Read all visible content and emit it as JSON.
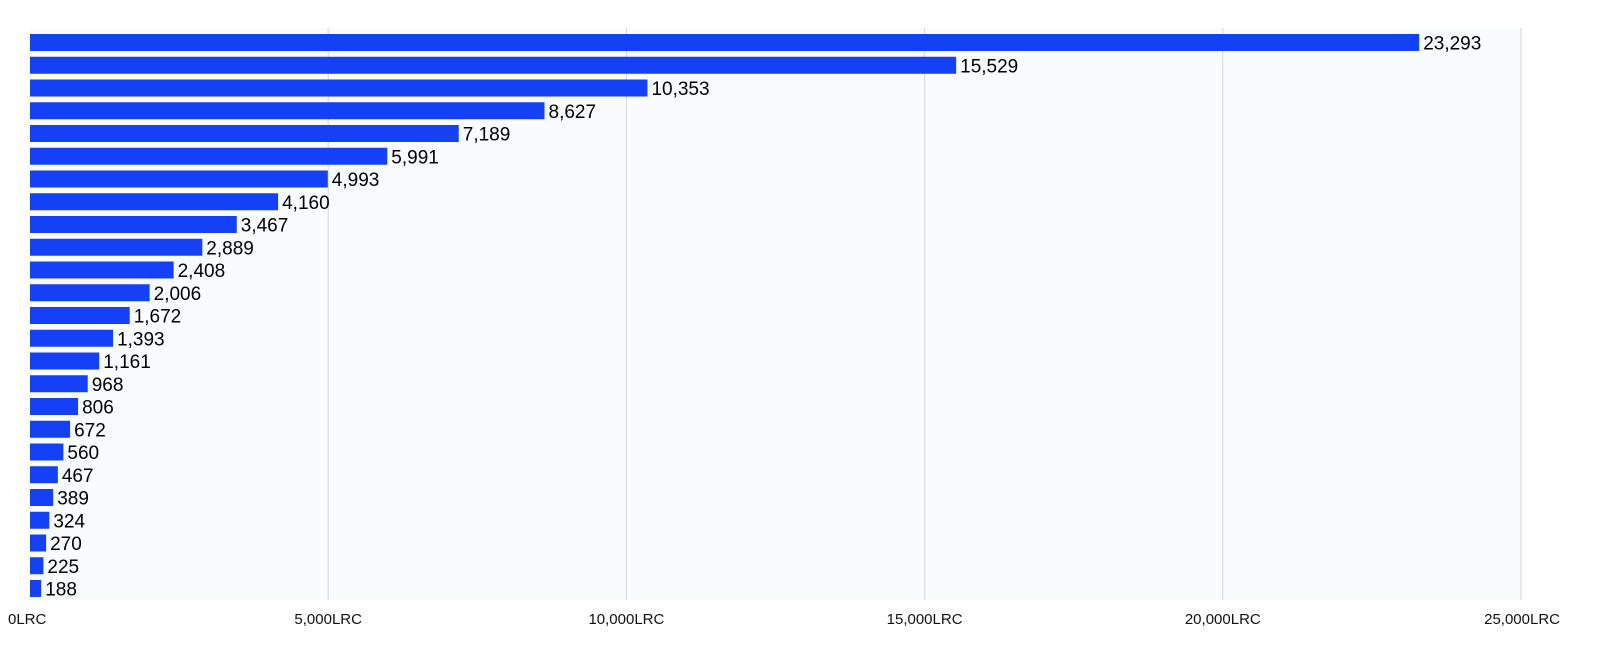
{
  "chart_data": {
    "type": "bar",
    "orientation": "horizontal",
    "values": [
      23293,
      15529,
      10353,
      8627,
      7189,
      5991,
      4993,
      4160,
      3467,
      2889,
      2408,
      2006,
      1672,
      1393,
      1161,
      968,
      806,
      672,
      560,
      467,
      389,
      324,
      270,
      225,
      188
    ],
    "value_labels": [
      "23,293",
      "15,529",
      "10,353",
      "8,627",
      "7,189",
      "5,991",
      "4,993",
      "4,160",
      "3,467",
      "2,889",
      "2,408",
      "2,006",
      "1,672",
      "1,393",
      "1,161",
      "968",
      "806",
      "672",
      "560",
      "467",
      "389",
      "324",
      "270",
      "225",
      "188"
    ],
    "x_ticks": [
      0,
      5000,
      10000,
      15000,
      20000,
      25000
    ],
    "x_tick_labels": [
      "0LRC",
      "5,000LRC",
      "10,000LRC",
      "15,000LRC",
      "20,000LRC",
      "25,000LRC"
    ],
    "xlim": [
      0,
      25000
    ],
    "grid": "vertical",
    "legend": "none",
    "colors": {
      "bar": "#1441f5",
      "plot_background": "#f8fcfd",
      "gridline": "#d3d9de",
      "text": "#000000"
    }
  }
}
